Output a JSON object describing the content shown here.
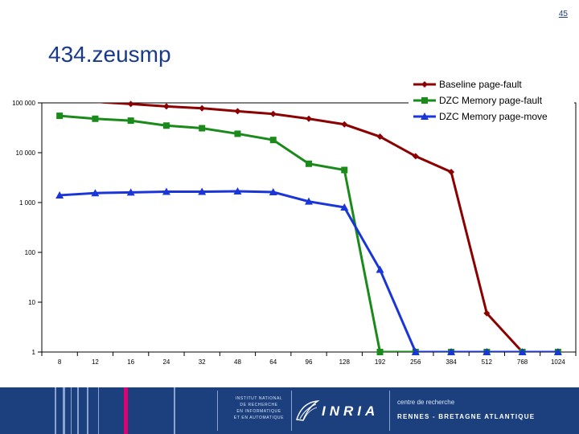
{
  "slide": {
    "page_number": "45",
    "title": "434.zeusmp"
  },
  "footer": {
    "institute_lines": [
      "INSTITUT NATIONAL",
      "DE RECHERCHE",
      "EN INFORMATIQUE",
      "ET EN AUTOMATIQUE"
    ],
    "logo_text": "INRIA",
    "center_label_lines": [
      "centre de recherche"
    ],
    "center_place": "RENNES - BRETAGNE ATLANTIQUE"
  },
  "chart_data": {
    "type": "line",
    "y_scale": "log",
    "ylim": [
      1,
      100000
    ],
    "grid": false,
    "legend_position": "top-right",
    "categories": [
      "8",
      "12",
      "16",
      "24",
      "32",
      "48",
      "64",
      "96",
      "128",
      "192",
      "256",
      "384",
      "512",
      "768",
      "1024"
    ],
    "y_ticks": [
      {
        "label": "100 000",
        "value": 100000
      },
      {
        "label": "10 000",
        "value": 10000
      },
      {
        "label": "1 000",
        "value": 1000
      },
      {
        "label": "100",
        "value": 100
      },
      {
        "label": "10",
        "value": 10
      },
      {
        "label": "1",
        "value": 1
      }
    ],
    "series": [
      {
        "name": "Baseline page-fault",
        "color": "#8b0000",
        "marker": "diamond",
        "values": [
          110000,
          105000,
          95000,
          85000,
          78000,
          68000,
          60000,
          48000,
          37000,
          21000,
          8500,
          4100,
          6,
          1,
          1
        ]
      },
      {
        "name": "DZC Memory page-fault",
        "color": "#1a8a1a",
        "marker": "square",
        "values": [
          55000,
          48000,
          44000,
          35000,
          31000,
          24000,
          18000,
          6000,
          4500,
          1,
          1,
          1,
          1,
          1,
          1
        ]
      },
      {
        "name": "DZC Memory page-move",
        "color": "#1a35d8",
        "marker": "triangle",
        "values": [
          1400,
          1550,
          1600,
          1650,
          1650,
          1680,
          1620,
          1050,
          800,
          45,
          1,
          1,
          1,
          1,
          1
        ]
      }
    ]
  }
}
